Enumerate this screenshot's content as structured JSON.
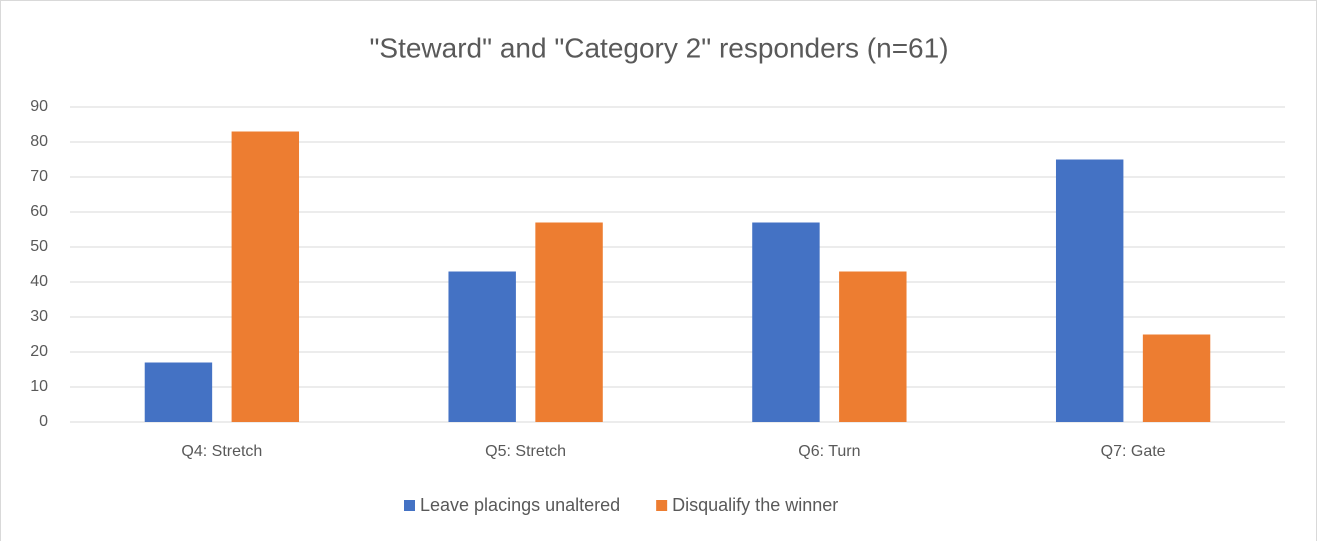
{
  "chart_data": {
    "type": "bar",
    "title": "\"Steward\" and \"Category 2\" responders (n=61)",
    "categories": [
      "Q4: Stretch",
      "Q5: Stretch",
      "Q6: Turn",
      "Q7: Gate"
    ],
    "series": [
      {
        "name": "Leave placings unaltered",
        "color": "#4472c4",
        "values": [
          17,
          43,
          57,
          75
        ]
      },
      {
        "name": "Disqualify the winner",
        "color": "#ed7d31",
        "values": [
          83,
          57,
          43,
          25
        ]
      }
    ],
    "ylim": [
      0,
      90
    ],
    "yticks": [
      0,
      10,
      20,
      30,
      40,
      50,
      60,
      70,
      80,
      90
    ],
    "grid": true,
    "legend": "bottom"
  }
}
